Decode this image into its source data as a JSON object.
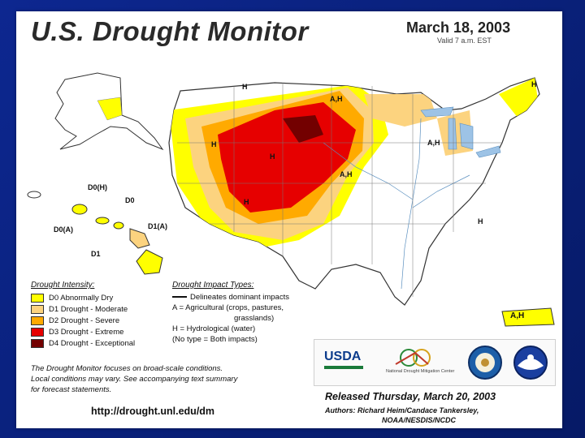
{
  "title": "U.S. Drought Monitor",
  "date": "March 18, 2003",
  "valid": "Valid 7 a.m. EST",
  "legend": {
    "heading": "Drought Intensity:",
    "items": [
      {
        "label": "D0 Abnormally Dry",
        "color": "#ffff00"
      },
      {
        "label": "D1 Drought - Moderate",
        "color": "#fcd37f"
      },
      {
        "label": "D2 Drought - Severe",
        "color": "#ffaa00"
      },
      {
        "label": "D3 Drought - Extreme",
        "color": "#e60000"
      },
      {
        "label": "D4 Drought - Exceptional",
        "color": "#730000"
      }
    ]
  },
  "impacts": {
    "heading": "Drought Impact Types:",
    "line1": "Delineates dominant impacts",
    "line2": "A = Agricultural (crops, pastures,",
    "line3": "grasslands)",
    "line4": "H = Hydrological (water)",
    "line5": "(No type = Both impacts)"
  },
  "note": {
    "line1": "The Drought Monitor focuses on broad-scale conditions.",
    "line2": "Local conditions may vary.  See accompanying text summary",
    "line3": "for forecast statements."
  },
  "url": "http://drought.unl.edu/dm",
  "released": "Released Thursday, March 20, 2003",
  "authors": {
    "line1": "Authors:  Richard Heim/Candace Tankersley,",
    "line2": "NOAA/NESDIS/NCDC"
  },
  "logos": {
    "usda": "USDA",
    "ndmc": "National Drought Mitigation Center"
  },
  "map_labels": {
    "nw_h": "H",
    "nd_ah": "A,H",
    "wy_h": "H",
    "ut_h": "H",
    "ne_ah": "A,H",
    "co_h": "H",
    "mi_ah": "A,H",
    "me_h": "H",
    "nc_h": "H",
    "pr_ah": "A,H",
    "hi_d0h": "D0(H)",
    "hi_d0": "D0",
    "hi_d0a": "D0(A)",
    "hi_d1a": "D1(A)",
    "hi_d1": "D1"
  },
  "colors": {
    "background": "#0b1e6e",
    "d0": "#ffff00",
    "d1": "#fcd37f",
    "d2": "#ffaa00",
    "d3": "#e60000",
    "d4": "#730000",
    "water": "#9dc3e6"
  }
}
